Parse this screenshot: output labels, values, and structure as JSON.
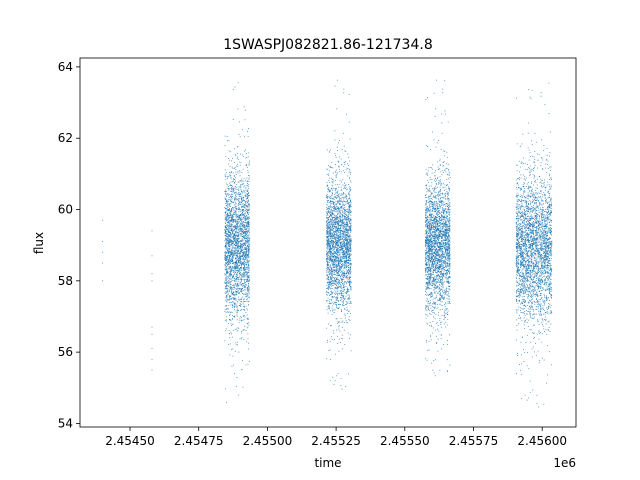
{
  "chart_data": {
    "type": "scatter",
    "title": "1SWASPJ082821.86-121734.8",
    "xlabel": "time",
    "ylabel": "flux",
    "x_offset_label": "1e6",
    "xlim": [
      2.454318,
      2.456123
    ],
    "ylim": [
      53.9,
      64.25
    ],
    "x_ticks": [
      2.4545,
      2.45475,
      2.455,
      2.45525,
      2.4555,
      2.45575,
      2.456
    ],
    "x_tick_labels": [
      "2.45450",
      "2.45475",
      "2.45500",
      "2.45525",
      "2.45550",
      "2.45575",
      "2.45600"
    ],
    "y_ticks": [
      54,
      56,
      58,
      60,
      62,
      64
    ],
    "y_tick_labels": [
      "54",
      "56",
      "58",
      "60",
      "62",
      "64"
    ],
    "grid": false,
    "marker_color": "#1f77b4",
    "series": [
      {
        "points_sparse": [
          [
            2.4544,
            59.7
          ],
          [
            2.4544,
            59.1
          ],
          [
            2.4544,
            58.8
          ],
          [
            2.4544,
            58.5
          ],
          [
            2.4544,
            58.0
          ],
          [
            2.45458,
            59.4
          ],
          [
            2.45458,
            58.7
          ],
          [
            2.45458,
            58.2
          ],
          [
            2.45458,
            58.0
          ],
          [
            2.45458,
            56.7
          ],
          [
            2.45458,
            56.5
          ],
          [
            2.45458,
            56.1
          ],
          [
            2.45458,
            55.8
          ],
          [
            2.45458,
            55.5
          ]
        ],
        "clusters": [
          {
            "x_start": 2.454845,
            "x_end": 2.454935,
            "center": 59.0,
            "spread": 1.1,
            "y_min": 54.5,
            "y_max": 63.6,
            "count": 2600
          },
          {
            "x_start": 2.455215,
            "x_end": 2.455305,
            "center": 59.0,
            "spread": 1.0,
            "y_min": 54.9,
            "y_max": 63.7,
            "count": 2600
          },
          {
            "x_start": 2.455575,
            "x_end": 2.455665,
            "center": 59.0,
            "spread": 1.0,
            "y_min": 55.3,
            "y_max": 63.7,
            "count": 2600
          },
          {
            "x_start": 2.455905,
            "x_end": 2.456035,
            "center": 58.9,
            "spread": 1.1,
            "y_min": 54.4,
            "y_max": 63.6,
            "count": 3000
          }
        ]
      }
    ]
  }
}
